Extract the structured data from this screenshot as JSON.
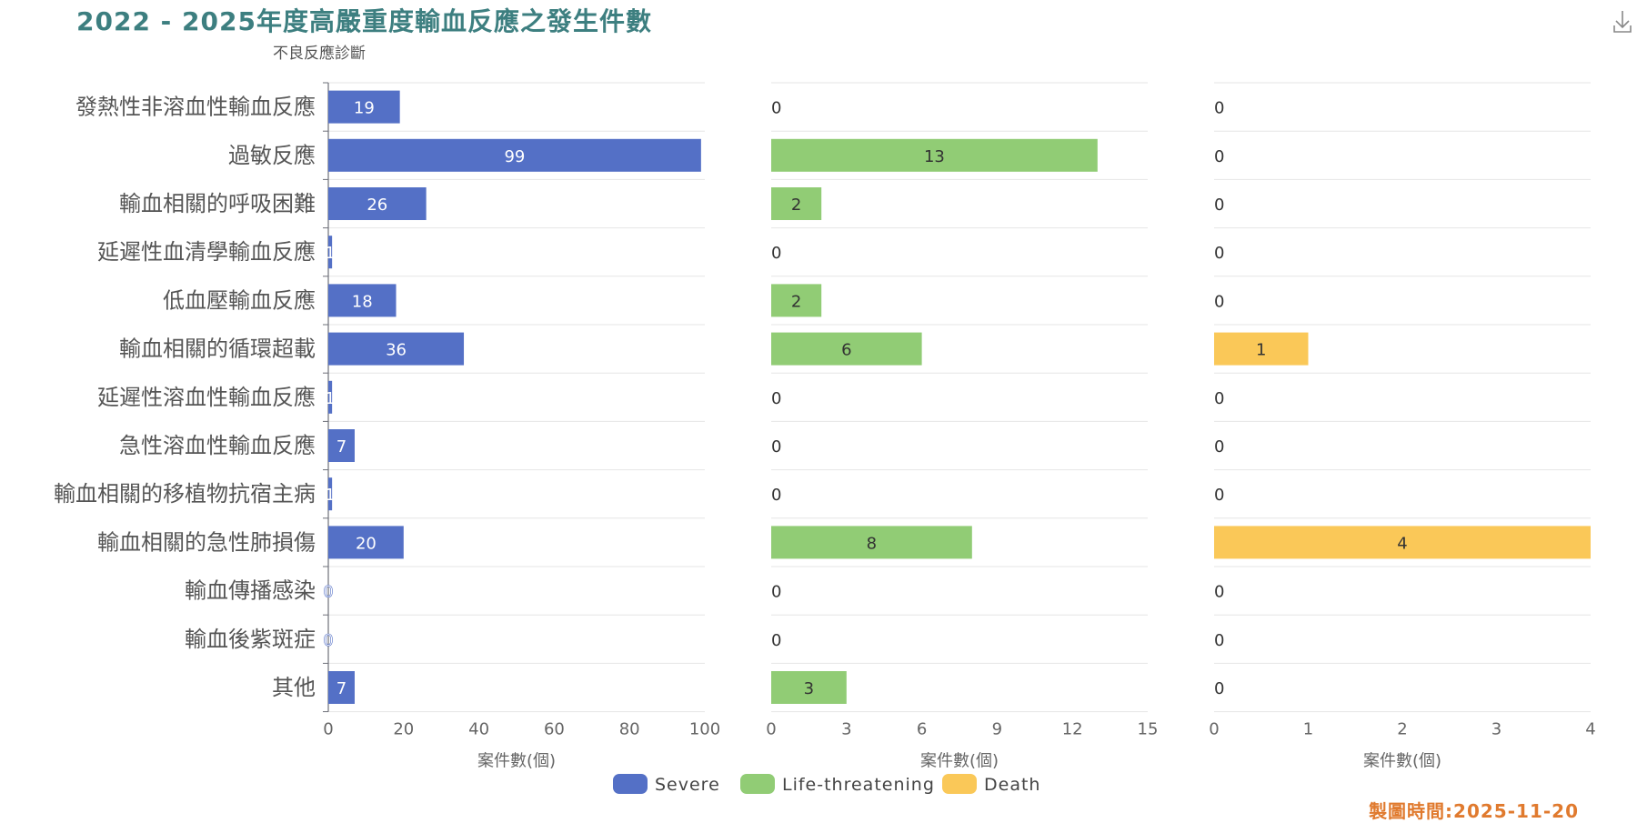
{
  "page": {
    "timestamp": "製圖時間:2025-11-20"
  },
  "colors": {
    "severe": "#5470c6",
    "life_threatening": "#91cc75",
    "death": "#fac858",
    "title": "#3d7f80",
    "timestamp": "#e07a2e"
  },
  "icons": {
    "download": "download-icon"
  },
  "chart_data": {
    "type": "bar",
    "orientation": "horizontal",
    "title": "2022 - 2025年度高嚴重度輸血反應之發生件數",
    "ylabel": "不良反應診斷",
    "xlabel": "案件數(個)",
    "grid": true,
    "legend_position": "bottom-center",
    "categories": [
      "發熱性非溶血性輸血反應",
      "過敏反應",
      "輸血相關的呼吸困難",
      "延遲性血清學輸血反應",
      "低血壓輸血反應",
      "輸血相關的循環超載",
      "延遲性溶血性輸血反應",
      "急性溶血性輸血反應",
      "輸血相關的移植物抗宿主病",
      "輸血相關的急性肺損傷",
      "輸血傳播感染",
      "輸血後紫斑症",
      "其他"
    ],
    "series": [
      {
        "name": "Severe",
        "color": "#5470c6",
        "xlim": [
          0,
          100
        ],
        "ticks": [
          0,
          20,
          40,
          60,
          80,
          100
        ],
        "values": [
          19,
          99,
          26,
          1,
          18,
          36,
          1,
          7,
          1,
          20,
          0,
          0,
          7
        ]
      },
      {
        "name": "Life-threatening",
        "color": "#91cc75",
        "xlim": [
          0,
          15
        ],
        "ticks": [
          0,
          3,
          6,
          9,
          12,
          15
        ],
        "values": [
          0,
          13,
          2,
          0,
          2,
          6,
          0,
          0,
          0,
          8,
          0,
          0,
          3
        ]
      },
      {
        "name": "Death",
        "color": "#fac858",
        "xlim": [
          0,
          4
        ],
        "ticks": [
          0,
          1,
          2,
          3,
          4
        ],
        "values": [
          0,
          0,
          0,
          0,
          0,
          1,
          0,
          0,
          0,
          4,
          0,
          0,
          0
        ]
      }
    ]
  }
}
